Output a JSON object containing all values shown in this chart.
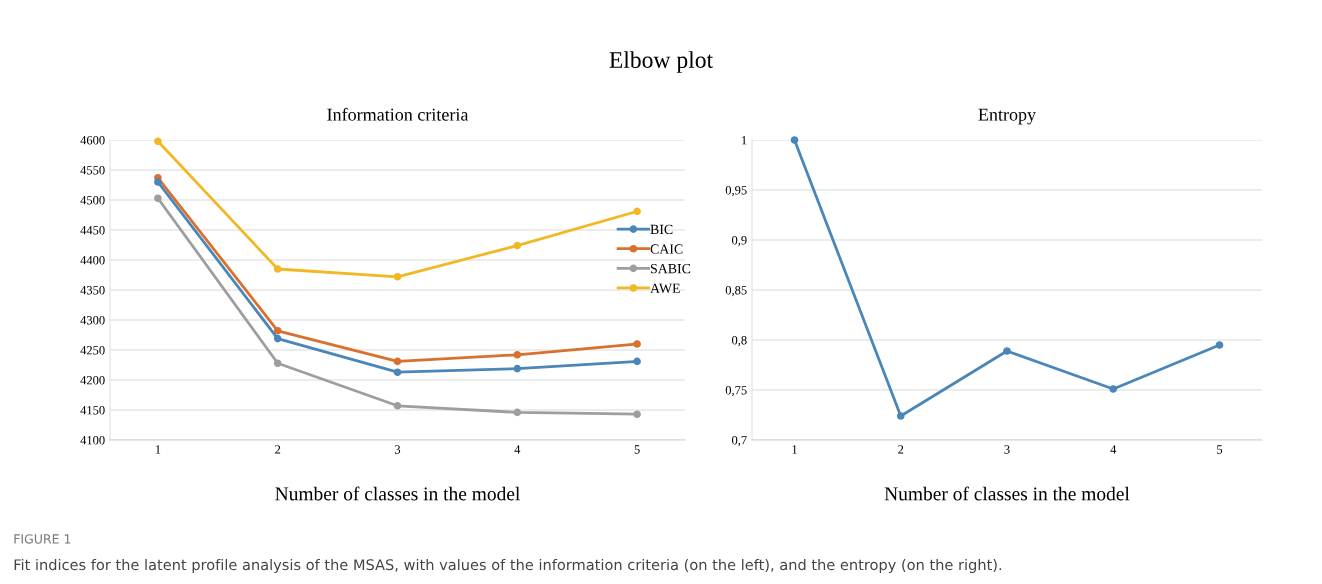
{
  "chart_data": [
    {
      "type": "line",
      "title": "Information criteria",
      "xlabel": "Number of classes in the model",
      "categories": [
        "1",
        "2",
        "3",
        "4",
        "5"
      ],
      "series": [
        {
          "name": "BIC",
          "color": "#4a86b8",
          "values": [
            4530,
            4269,
            4213,
            4219,
            4231
          ]
        },
        {
          "name": "CAIC",
          "color": "#d9702e",
          "values": [
            4537,
            4282,
            4231,
            4242,
            4260
          ]
        },
        {
          "name": "SABIC",
          "color": "#9e9e9e",
          "values": [
            4503,
            4228,
            4157,
            4146,
            4143
          ]
        },
        {
          "name": "AWE",
          "color": "#f2b824",
          "values": [
            4598,
            4385,
            4372,
            4424,
            4481
          ]
        }
      ],
      "ylim": [
        4100,
        4600
      ],
      "yticks": [
        4100,
        4150,
        4200,
        4250,
        4300,
        4350,
        4400,
        4450,
        4500,
        4550,
        4600
      ],
      "grid": "y",
      "legend": "right",
      "marker": "circle",
      "line_style": "solid",
      "annotations": [
        "Elbow plot",
        "FIGURE 1",
        "Fit indices for the latent profile analysis of the MSAS, with values of the information criteria (on the left), and the entropy (on the right)."
      ]
    },
    {
      "type": "line",
      "title": "Entropy",
      "xlabel": "Number of classes in the model",
      "categories": [
        "1",
        "2",
        "3",
        "4",
        "5"
      ],
      "series": [
        {
          "color": "#4a86b8",
          "values": [
            1.0,
            0.724,
            0.789,
            0.751,
            0.795
          ]
        }
      ],
      "ylim": [
        0.7,
        1.0
      ],
      "yticks": [
        {
          "value": 0.7,
          "label": "0,7"
        },
        {
          "value": 0.75,
          "label": "0,75"
        },
        {
          "value": 0.8,
          "label": "0,8"
        },
        {
          "value": 0.85,
          "label": "0,85"
        },
        {
          "value": 0.9,
          "label": "0,9"
        },
        {
          "value": 0.95,
          "label": "0,95"
        },
        {
          "value": 1,
          "label": "1"
        }
      ],
      "grid": "y",
      "marker": "circle",
      "line_style": "solid"
    }
  ]
}
